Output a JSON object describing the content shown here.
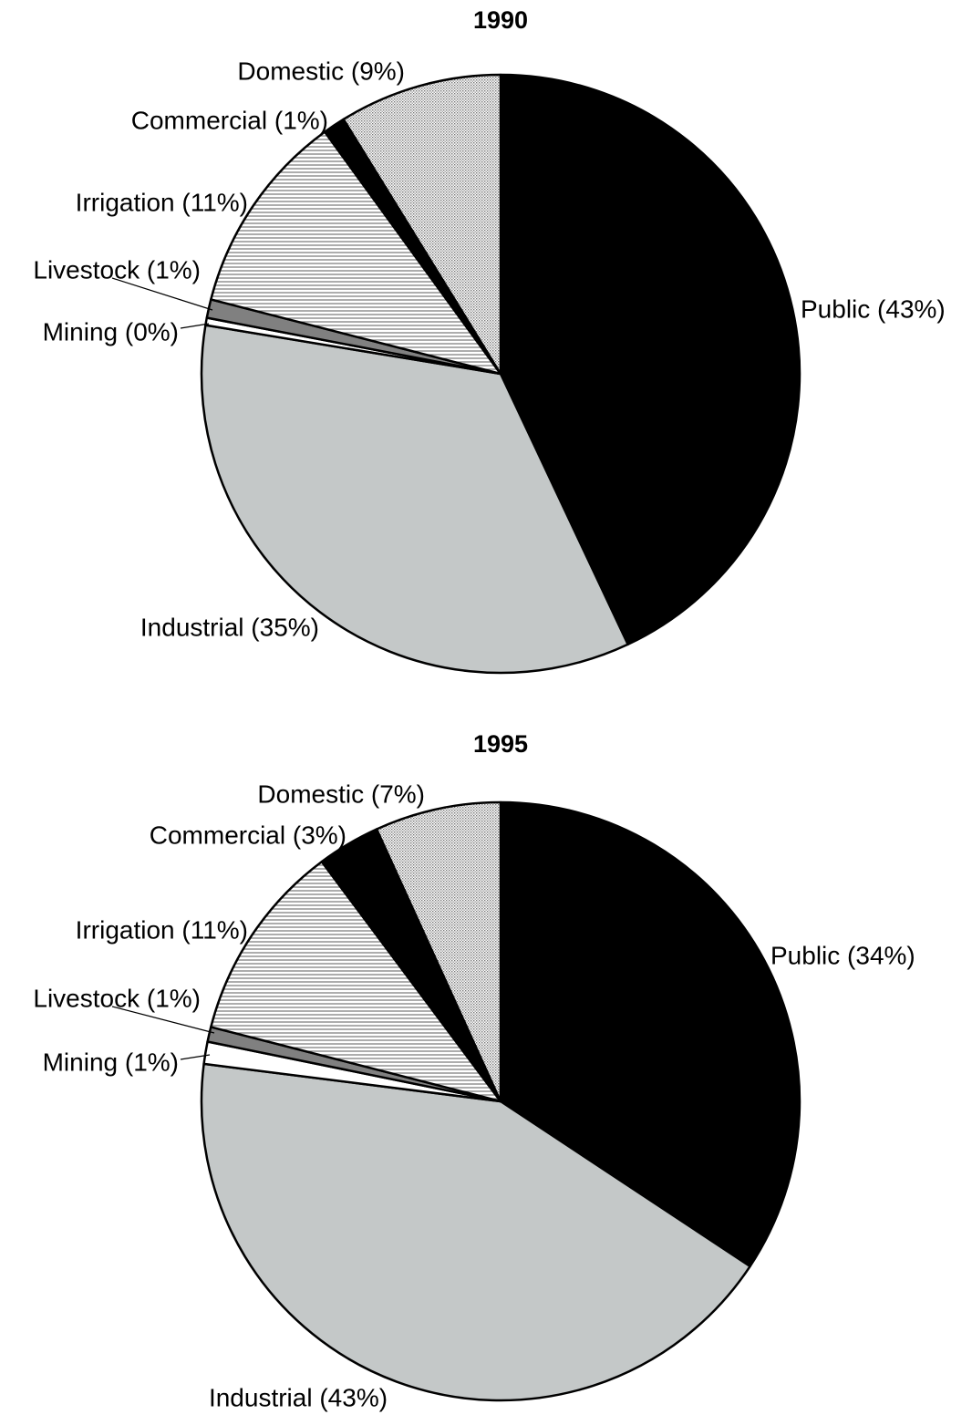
{
  "chart_data": [
    {
      "type": "pie",
      "title": "1990",
      "categories": [
        "Public (43%)",
        "Industrial (35%)",
        "Mining (0%)",
        "Livestock (1%)",
        "Irrigation (11%)",
        "Commercial (1%)",
        "Domestic (9%)"
      ],
      "values": [
        43,
        34.6,
        0.4,
        1.0,
        11.0,
        1.2,
        8.8
      ],
      "colors": [
        "#000000",
        "#c4c8c8",
        "#ffffff",
        "#808080",
        "hatch",
        "#000000",
        "dots"
      ]
    },
    {
      "type": "pie",
      "title": "1995",
      "categories": [
        "Public (34%)",
        "Industrial (43%)",
        "Mining (1%)",
        "Livestock (1%)",
        "Irrigation (11%)",
        "Commercial (3%)",
        "Domestic (7%)"
      ],
      "values": [
        34.3,
        42.7,
        1.2,
        0.8,
        10.8,
        3.4,
        6.8
      ],
      "colors": [
        "#000000",
        "#c4c8c8",
        "#ffffff",
        "#808080",
        "hatch",
        "#000000",
        "dots"
      ]
    }
  ]
}
